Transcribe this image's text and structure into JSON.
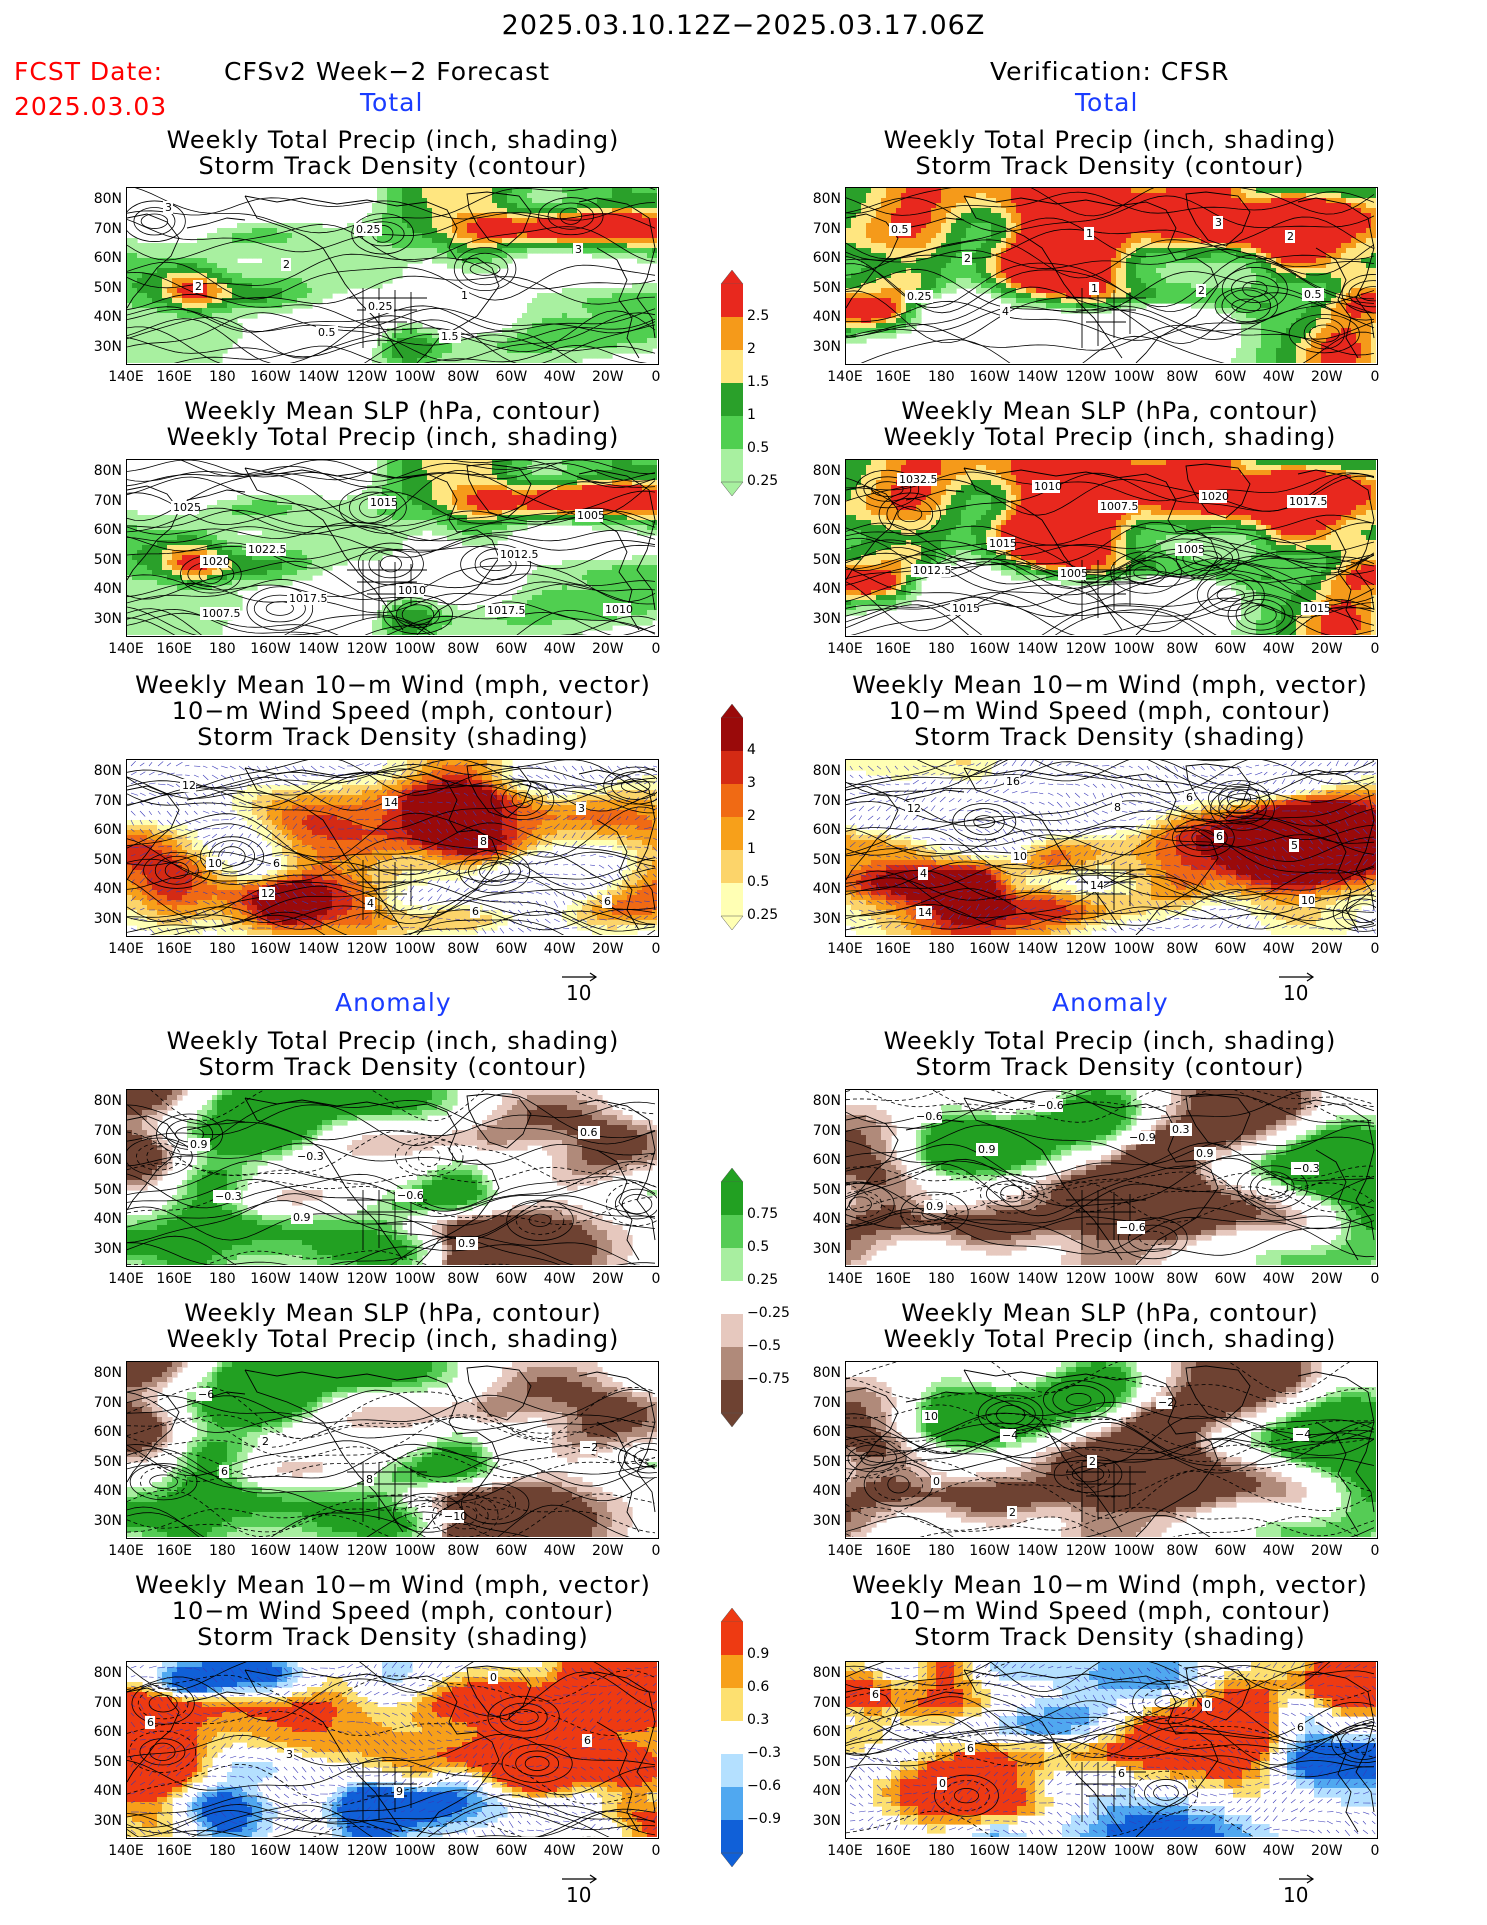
{
  "header": {
    "period": "2025.03.10.12Z−2025.03.17.06Z",
    "fcst_date_label": "FCST Date:",
    "fcst_date": "2025.03.03",
    "left_title": "CFSv2 Week−2 Forecast",
    "right_title": "Verification: CFSR",
    "section_total": "Total",
    "section_anomaly": "Anomaly"
  },
  "titles": {
    "precip_storm": [
      "Weekly Total Precip (inch, shading)",
      "Storm Track Density (contour)"
    ],
    "slp_precip": [
      "Weekly Mean SLP (hPa, contour)",
      "Weekly Total Precip (inch, shading)"
    ],
    "wind_storm": [
      "Weekly Mean 10−m Wind (mph, vector)",
      "10−m Wind Speed (mph, contour)",
      "Storm Track Density (shading)"
    ]
  },
  "axes": {
    "lat_labels": [
      "80N",
      "70N",
      "60N",
      "50N",
      "40N",
      "30N"
    ],
    "lon_labels": [
      "140E",
      "160E",
      "180",
      "160W",
      "140W",
      "120W",
      "100W",
      "80W",
      "60W",
      "40W",
      "20W",
      "0"
    ],
    "vector_ref": "10"
  },
  "colorbars": {
    "precip_total": {
      "labels": [
        "2.5",
        "2",
        "1.5",
        "1",
        "0.5",
        "0.25"
      ],
      "colors": [
        "#e8281e",
        "#f59a1a",
        "#ffe680",
        "#2aa02a",
        "#50cf50",
        "#a8f0a0"
      ]
    },
    "storm_total": {
      "labels": [
        "4",
        "3",
        "2",
        "1",
        "0.5",
        "0.25"
      ],
      "colors": [
        "#9a0a0a",
        "#d42a14",
        "#f06a14",
        "#f7a01a",
        "#fcd46a",
        "#ffffb4"
      ]
    },
    "precip_anom": {
      "labels": [
        "0.75",
        "0.5",
        "0.25",
        "−0.25",
        "−0.5",
        "−0.75"
      ],
      "colors": [
        "#22a022",
        "#55cc55",
        "#a8eea0",
        "#ffffff",
        "#e6c8be",
        "#b08a7a",
        "#6e4232"
      ]
    },
    "storm_anom": {
      "labels": [
        "0.9",
        "0.6",
        "0.3",
        "−0.3",
        "−0.6",
        "−0.9"
      ],
      "colors": [
        "#ee3a12",
        "#f7a01a",
        "#fde070",
        "#ffffff",
        "#b4e0ff",
        "#50a8f0",
        "#1060d8"
      ]
    }
  },
  "map_labels": {
    "fc_tot_precip": [
      "3",
      "2",
      "0.25",
      "1.5",
      "3",
      "2",
      "0.5",
      "0.25",
      "1"
    ],
    "ob_tot_precip": [
      "0.5",
      "2",
      "1",
      "3",
      "2",
      "0.25",
      "4",
      "1",
      "2",
      "0.5"
    ],
    "fc_tot_slp": [
      "1025",
      "1022.5",
      "1010",
      "1017.5",
      "1005",
      "1020",
      "1017.5",
      "1015",
      "1012.5",
      "1010",
      "1007.5"
    ],
    "ob_tot_slp": [
      "1032.5",
      "1015",
      "1005",
      "1020",
      "1017.5",
      "1012.5",
      "1010",
      "1007.5",
      "1005",
      "1015",
      "1015"
    ],
    "fc_tot_wind": [
      "12",
      "6",
      "4",
      "6",
      "3",
      "10",
      "12",
      "14",
      "8",
      "6"
    ],
    "ob_tot_wind": [
      "12",
      "10",
      "14",
      "6",
      "5",
      "4",
      "16",
      "8",
      "6",
      "10",
      "14"
    ],
    "fc_anm_precip": [
      "0.9",
      "−0.3",
      "−0.6",
      "0.9",
      "0.6",
      "−0.3",
      "0.9"
    ],
    "ob_anm_precip": [
      "−0.6",
      "0.9",
      "−0.6",
      "0.3",
      "−0.3",
      "0.9",
      "−0.6",
      "−0.9",
      "0.9"
    ],
    "fc_anm_slp": [
      "−6",
      "2",
      "8",
      "−10",
      "−2",
      "6"
    ],
    "ob_anm_slp": [
      "10",
      "−4",
      "2",
      "−2",
      "−4",
      "0",
      "2"
    ],
    "fc_anm_wind": [
      "6",
      "3",
      "9",
      "0",
      "6"
    ],
    "ob_anm_wind": [
      "6",
      "6",
      "6",
      "0",
      "6",
      "0"
    ]
  }
}
